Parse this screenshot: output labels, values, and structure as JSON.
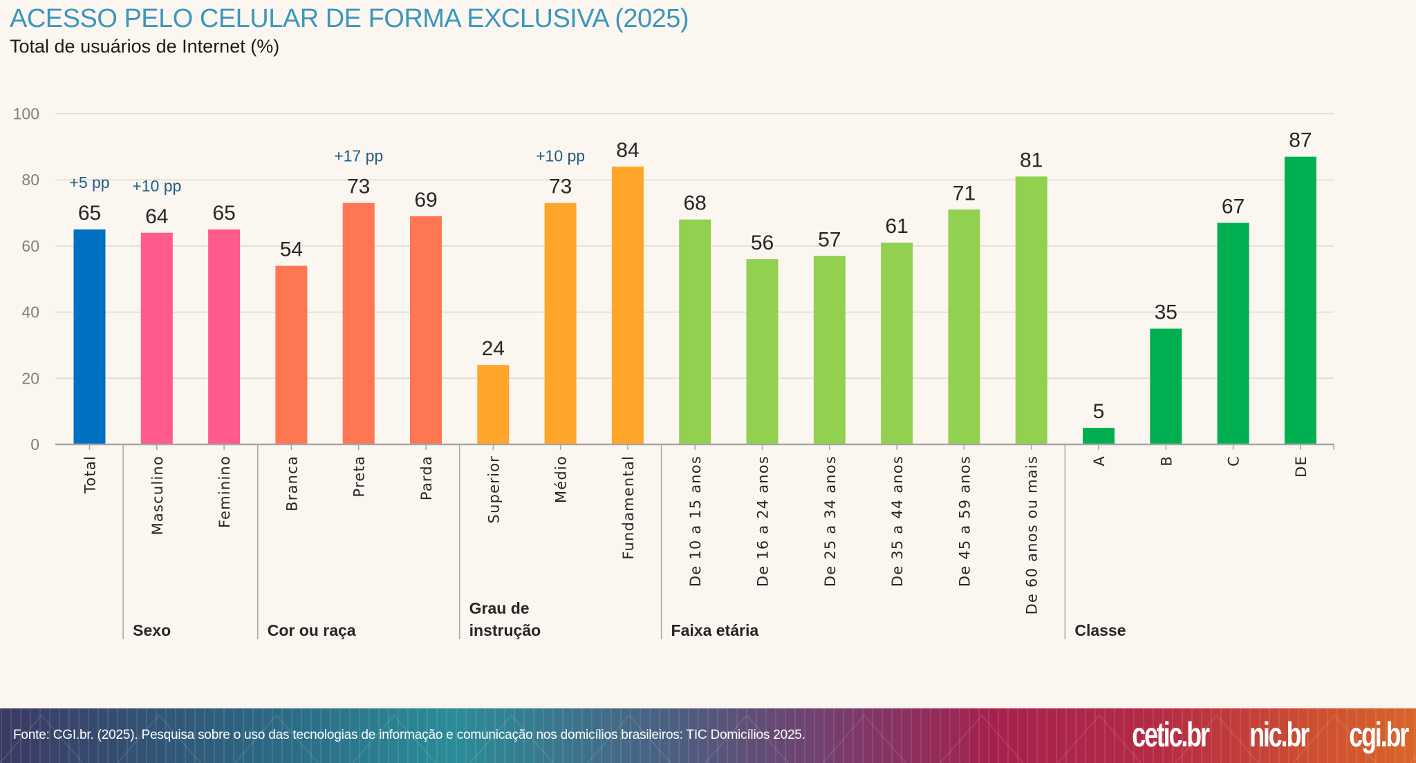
{
  "header": {
    "title": "ACESSO PELO CELULAR DE FORMA EXCLUSIVA (2025)",
    "subtitle": "Total de usuários de Internet (%)"
  },
  "footer": {
    "source": "Fonte: CGI.br. (2025). Pesquisa sobre o uso das tecnologias de informação e comunicação nos domicílios brasileiros: TIC Domicílios 2025.",
    "logos": [
      "cetic.br",
      "nic.br",
      "cgi.br"
    ]
  },
  "colors": {
    "title": "#3a97bd",
    "annotation": "#1f5f86",
    "total": "#0070c0",
    "sexo": "#ff5b8c",
    "cor_raca": "#ff7752",
    "instrucao": "#ffa52a",
    "faixa_etaria": "#92d050",
    "classe": "#00b050"
  },
  "chart_data": {
    "type": "bar",
    "title": "ACESSO PELO CELULAR DE FORMA EXCLUSIVA (2025)",
    "subtitle": "Total de usuários de Internet (%)",
    "xlabel": "",
    "ylabel": "",
    "ylim": [
      0,
      100
    ],
    "yticks": [
      0,
      20,
      40,
      60,
      80,
      100
    ],
    "grid": true,
    "legend": "none",
    "categories": [
      "Total",
      "Masculino",
      "Feminino",
      "Branca",
      "Preta",
      "Parda",
      "Superior",
      "Médio",
      "Fundamental",
      "De 10 a 15 anos",
      "De 16 a 24 anos",
      "De 25 a 34 anos",
      "De 35 a 44 anos",
      "De 45 a 59 anos",
      "De 60 anos ou mais",
      "A",
      "B",
      "C",
      "DE"
    ],
    "values": [
      65,
      64,
      65,
      54,
      73,
      69,
      24,
      73,
      84,
      68,
      56,
      57,
      61,
      71,
      81,
      5,
      35,
      67,
      87
    ],
    "groups": [
      {
        "name": "",
        "color_key": "total",
        "start": 0,
        "count": 1
      },
      {
        "name": "Sexo",
        "color_key": "sexo",
        "start": 1,
        "count": 2
      },
      {
        "name": "Cor ou raça",
        "color_key": "cor_raca",
        "start": 3,
        "count": 3
      },
      {
        "name": "Grau de instrução",
        "lines": [
          "Grau de",
          "instrução"
        ],
        "color_key": "instrucao",
        "start": 6,
        "count": 3
      },
      {
        "name": "Faixa etária",
        "color_key": "faixa_etaria",
        "start": 9,
        "count": 6
      },
      {
        "name": "Classe",
        "color_key": "classe",
        "start": 15,
        "count": 4
      }
    ],
    "annotations": [
      {
        "category": "Total",
        "text": "+5 pp"
      },
      {
        "category": "Masculino",
        "text": "+10 pp"
      },
      {
        "category": "Preta",
        "text": "+17 pp"
      },
      {
        "category": "Médio",
        "text": "+10 pp"
      }
    ]
  }
}
